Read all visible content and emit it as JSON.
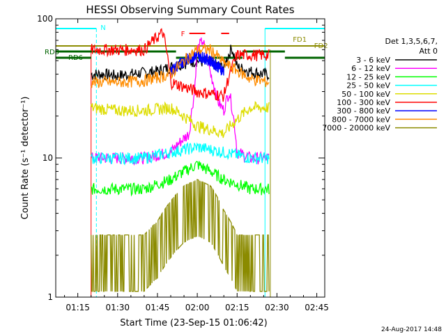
{
  "chart_data": {
    "type": "line",
    "title": "HESSI Observing Summary Count Rates",
    "xlabel": "Start Time (23-Sep-15 01:06:42)",
    "ylabel": "Count Rate (s⁻¹ detector⁻¹)",
    "yscale": "log",
    "ylim": [
      1,
      100
    ],
    "xlim": [
      "01:06:42",
      "02:48:00"
    ],
    "xticks": [
      "01:15",
      "01:30",
      "01:45",
      "02:00",
      "02:15",
      "02:30",
      "02:45"
    ],
    "yticks": [
      "1",
      "10",
      "100"
    ],
    "legend_header": [
      "Det 1,3,5,6,7,",
      "Att 0"
    ],
    "legend_position": "right",
    "footer_date": "24-Aug-2017 14:48",
    "data_window": [
      "01:20:00",
      "02:27:30"
    ],
    "series": [
      {
        "name": "3 - 6 keV",
        "color": "#000000",
        "x": [
          "01:20",
          "01:25",
          "01:30",
          "01:35",
          "01:40",
          "01:45",
          "01:50",
          "01:55",
          "02:00",
          "02:05",
          "02:10",
          "02:13",
          "02:15",
          "02:20",
          "02:25",
          "02:27"
        ],
        "values": [
          40,
          40,
          39,
          40,
          41,
          42,
          45,
          48,
          50,
          48,
          45,
          62,
          45,
          42,
          40,
          40
        ]
      },
      {
        "name": "6 - 12 keV",
        "color": "#ff00ff",
        "x": [
          "01:20",
          "01:30",
          "01:40",
          "01:50",
          "01:57",
          "01:59",
          "02:00",
          "02:02",
          "02:05",
          "02:08",
          "02:10",
          "02:12",
          "02:15",
          "02:20",
          "02:27"
        ],
        "values": [
          10,
          10,
          10,
          11,
          15,
          30,
          60,
          70,
          40,
          25,
          22,
          30,
          11,
          10,
          10
        ]
      },
      {
        "name": "12 - 25 keV",
        "color": "#00ff00",
        "x": [
          "01:20",
          "01:30",
          "01:40",
          "01:50",
          "02:00",
          "02:10",
          "02:20",
          "02:27"
        ],
        "values": [
          6,
          6,
          6,
          7,
          9,
          7,
          6,
          6
        ]
      },
      {
        "name": "25 - 50 keV",
        "color": "#00ffff",
        "x": [
          "01:20",
          "01:30",
          "01:40",
          "01:50",
          "02:00",
          "02:10",
          "02:20",
          "02:27"
        ],
        "values": [
          10,
          10,
          10,
          11,
          12,
          11,
          10,
          10
        ]
      },
      {
        "name": "50 - 100 keV",
        "color": "#dddd00",
        "x": [
          "01:20",
          "01:30",
          "01:40",
          "01:50",
          "02:00",
          "02:10",
          "02:20",
          "02:27"
        ],
        "values": [
          23,
          22,
          22,
          23,
          17,
          15,
          23,
          23
        ]
      },
      {
        "name": "100 - 300 keV",
        "color": "#ff0000",
        "x": [
          "01:20",
          "01:30",
          "01:40",
          "01:47",
          "01:50",
          "02:00",
          "02:10",
          "02:15",
          "02:20",
          "02:27"
        ],
        "values": [
          60,
          60,
          60,
          80,
          35,
          30,
          28,
          55,
          55,
          55
        ]
      },
      {
        "name": "300 - 800 keV",
        "color": "#0000ff",
        "x": [
          "01:50",
          "01:55",
          "02:00",
          "02:05",
          "02:10"
        ],
        "values": [
          42,
          50,
          55,
          50,
          42
        ]
      },
      {
        "name": "800 - 7000 keV",
        "color": "#ff8c00",
        "x": [
          "01:20",
          "01:30",
          "01:40",
          "01:50",
          "01:55",
          "02:00",
          "02:05",
          "02:10",
          "02:20",
          "02:27"
        ],
        "values": [
          35,
          35,
          36,
          40,
          50,
          60,
          60,
          48,
          37,
          35
        ]
      },
      {
        "name": "7000 - 20000 keV",
        "color": "#8b8b00",
        "x": [
          "01:20",
          "01:30",
          "01:40",
          "01:45",
          "01:50",
          "01:55",
          "02:00",
          "02:05",
          "02:10",
          "02:15",
          "02:20",
          "02:27"
        ],
        "values": [
          2,
          2,
          2,
          2.5,
          3.5,
          4.5,
          5,
          4.5,
          3,
          2,
          2,
          2
        ]
      }
    ],
    "flags": [
      {
        "label": "N",
        "type": "night",
        "color": "#00ffff",
        "intervals": [
          [
            "01:06:42",
            "01:22:00"
          ],
          [
            "02:25:30",
            "02:48:00"
          ]
        ]
      },
      {
        "label": "RD0",
        "color": "#006400",
        "level": "upper"
      },
      {
        "label": "RD6",
        "color": "#006400",
        "level": "lower"
      },
      {
        "label": "FD1",
        "color": "#8b8b00"
      },
      {
        "label": "FD2",
        "color": "#8b8b00"
      },
      {
        "label": "F",
        "type": "flare",
        "color": "#ff0000",
        "intervals": [
          [
            "01:57:00",
            "02:03:00"
          ],
          [
            "02:09:00",
            "02:12:00"
          ]
        ]
      }
    ]
  }
}
